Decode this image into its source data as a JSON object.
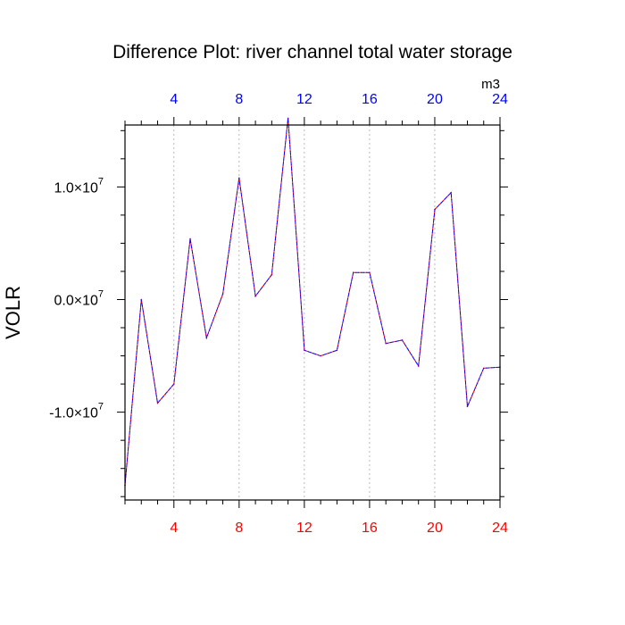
{
  "chart_data": {
    "type": "line",
    "title": "Difference Plot: river channel total water storage",
    "ylabel": "VOLR",
    "units": "m3",
    "xlim": [
      1,
      24
    ],
    "ylim": [
      -17800000,
      15500000
    ],
    "x_ticks": [
      4,
      8,
      12,
      16,
      20,
      24
    ],
    "x_tick_labels": [
      "4",
      "8",
      "12",
      "16",
      "20",
      "24"
    ],
    "y_ticks": [
      {
        "value": 10000000,
        "mantissa": "1.0",
        "exponent": "7"
      },
      {
        "value": 0,
        "mantissa": "0.0",
        "exponent": "7"
      },
      {
        "value": -10000000,
        "mantissa": "-1.0",
        "exponent": "7"
      }
    ],
    "times_symbol": "×",
    "base": "10",
    "colors": {
      "bottom_axis_labels": "#ff0000",
      "top_axis_labels": "#0000ff",
      "series_line_a": "#ff0000",
      "series_line_b": "#0000ff",
      "gridlines": "#aaaaaa",
      "frame": "#000000"
    },
    "series": [
      {
        "name": "VOLR difference",
        "x": [
          1,
          2,
          3,
          4,
          5,
          6,
          7,
          8,
          9,
          10,
          11,
          12,
          13,
          14,
          15,
          16,
          17,
          18,
          19,
          20,
          21,
          22,
          23,
          24
        ],
        "values": [
          -16500000,
          0,
          -9200000,
          -7500000,
          5400000,
          -3400000,
          500000,
          10800000,
          300000,
          2200000,
          16100000,
          -4500000,
          -5000000,
          -4500000,
          2400000,
          2400000,
          -3900000,
          -3600000,
          -5900000,
          8000000,
          9500000,
          -9500000,
          -6100000,
          -6000000
        ]
      }
    ]
  }
}
